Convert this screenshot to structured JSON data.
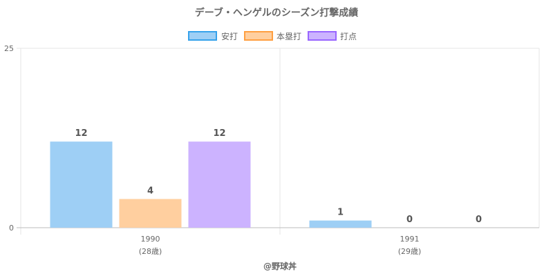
{
  "chart_data": {
    "type": "bar",
    "title": "デーブ・ヘンゲルのシーズン打撃成績",
    "categories": [
      "1990",
      "1991"
    ],
    "category_sublabels": [
      "(28歳)",
      "(29歳)"
    ],
    "series": [
      {
        "name": "安打",
        "values": [
          12,
          1
        ],
        "fill": "#9ecff5",
        "stroke": "#36a2eb"
      },
      {
        "name": "本塁打",
        "values": [
          4,
          0
        ],
        "fill": "#ffcf9f",
        "stroke": "#ff9f40"
      },
      {
        "name": "打点",
        "values": [
          12,
          0
        ],
        "fill": "#ccb3ff",
        "stroke": "#9966ff"
      }
    ],
    "yticks": [
      "0",
      "25"
    ],
    "ylim": [
      0,
      25
    ],
    "grid": true,
    "legend": "top-center",
    "credit": "@野球丼"
  }
}
